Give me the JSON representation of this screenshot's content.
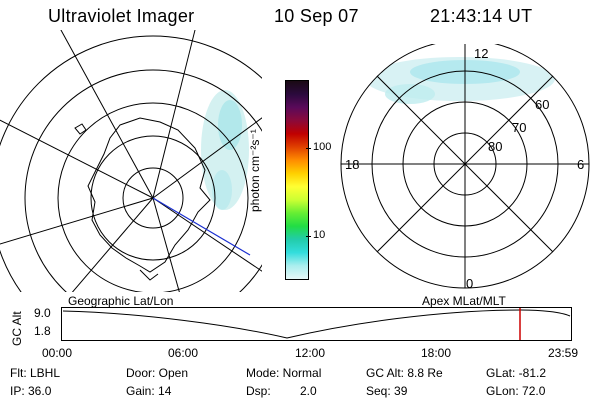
{
  "header": {
    "title": "Ultraviolet Imager",
    "date": "10 Sep 07",
    "time": "21:43:14 UT"
  },
  "colorbar": {
    "unit_label": "photon cm⁻²s⁻¹",
    "ticks": [
      "100",
      "10"
    ],
    "colors": [
      "#1a0a14",
      "#2b0a3d",
      "#5a0a5a",
      "#8b0a3a",
      "#c00000",
      "#e04000",
      "#ff8c00",
      "#ffd000",
      "#ffff33",
      "#ccff33",
      "#66ee33",
      "#22dd44",
      "#22ccaa",
      "#33dddd",
      "#aaeeee",
      "#e6f7f7"
    ]
  },
  "left_map": {
    "caption": "Geographic Lat/Lon"
  },
  "right_map": {
    "caption": "Apex MLat/MLT",
    "mlt_labels": {
      "top": "12",
      "left": "18",
      "right": "6",
      "bottom": "0"
    },
    "mlat_labels": [
      "60",
      "70",
      "80"
    ]
  },
  "altitude_plot": {
    "ylabel": "GC Alt",
    "yticks": [
      "9.0",
      "1.8"
    ],
    "xticks": [
      "00:00",
      "06:00",
      "12:00",
      "18:00",
      "23:59"
    ],
    "marker_color": "#cc0000"
  },
  "info": {
    "filter": "Flt: LBHL",
    "ip": "IP: 36.0",
    "door": "Door:  Open",
    "gain": "Gain: 14",
    "mode": "Mode:  Normal",
    "dsp_label": "Dsp:",
    "dsp_value": "2.0",
    "gc_alt": "GC Alt: 8.8 Re",
    "seq": "Seq: 39",
    "glat": "GLat:  -81.2",
    "glon": "GLon:  72.0"
  }
}
